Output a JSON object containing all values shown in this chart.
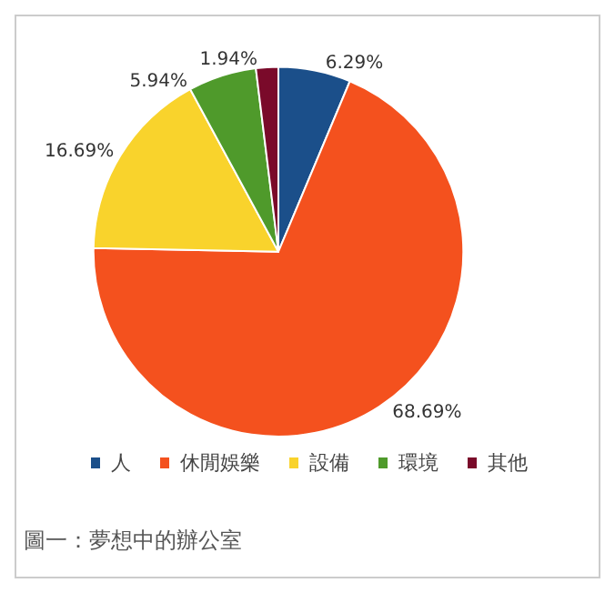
{
  "chart_data": {
    "type": "pie",
    "categories": [
      "人",
      "休閒娛樂",
      "設備",
      "環境",
      "其他"
    ],
    "values": [
      6.29,
      68.69,
      16.69,
      5.94,
      1.94
    ],
    "colors": [
      "#1b4f8a",
      "#f4511e",
      "#f9d32c",
      "#4f9a2b",
      "#7a0a2a"
    ],
    "value_labels": [
      "6.29%",
      "68.69%",
      "16.69%",
      "5.94%",
      "1.94%"
    ],
    "legend": "bottom",
    "annotations": [
      "圖一：夢想中的辦公室"
    ]
  }
}
